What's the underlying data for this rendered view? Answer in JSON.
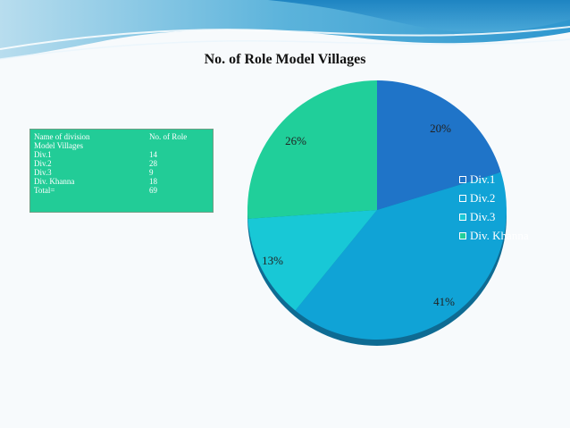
{
  "chart_data": {
    "type": "pie",
    "title": "No. of Role Model Villages",
    "categories": [
      "Div.1",
      "Div.2",
      "Div.3",
      "Div. Khanna"
    ],
    "values": [
      14,
      28,
      9,
      18
    ],
    "percent_labels": [
      "20%",
      "41%",
      "13%",
      "26%"
    ],
    "colors": [
      "#1f74c8",
      "#10a3d6",
      "#18c8d6",
      "#20cf9a"
    ],
    "legend_position": "right"
  },
  "table": {
    "header": [
      "Name of division",
      "No. of Role"
    ],
    "header_cont": [
      "Model Villages",
      ""
    ],
    "rows": [
      [
        "Div.1",
        "14"
      ],
      [
        "Div.2",
        "28"
      ],
      [
        "Div.3",
        "9"
      ],
      [
        "Div. Khanna",
        "18"
      ],
      [
        "Total=",
        "69"
      ]
    ]
  }
}
